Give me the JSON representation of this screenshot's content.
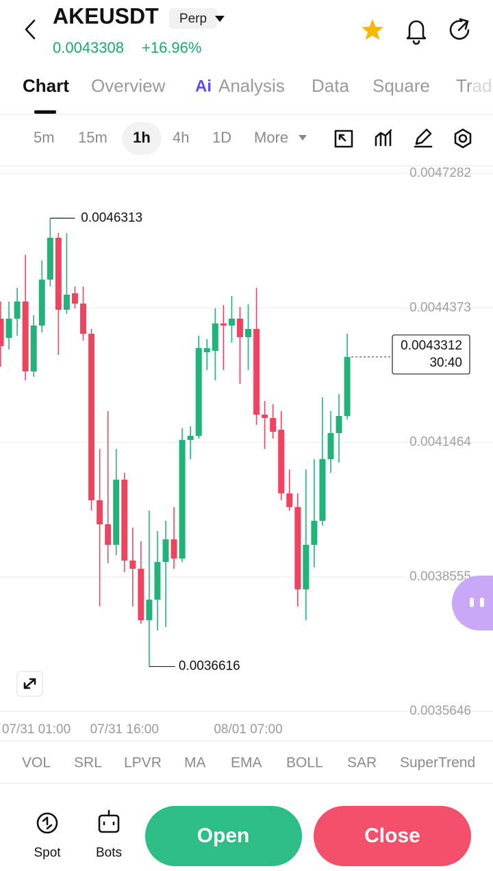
{
  "header": {
    "symbol": "AKEUSDT",
    "badge": "Perp",
    "price": "0.0043308",
    "change": "+16.96%"
  },
  "tabs": [
    "Chart",
    "Overview",
    "Analysis",
    "Data",
    "Square",
    "Trade"
  ],
  "ai_badge": "Ai",
  "intervals": [
    "5m",
    "15m",
    "1h",
    "4h",
    "1D",
    "More"
  ],
  "chart_data": {
    "type": "candlestick",
    "categories": [
      null,
      null,
      null,
      null,
      "07/31 01:00",
      null,
      null,
      null,
      null,
      null,
      null,
      null,
      null,
      null,
      null,
      "07/31 16:00",
      null,
      null,
      null,
      null,
      null,
      null,
      null,
      null,
      null,
      null,
      null,
      null,
      null,
      null,
      "08/01 07:00",
      null,
      null,
      null,
      null,
      null,
      null,
      null,
      null,
      null,
      null,
      null,
      null
    ],
    "open": [
      0.004414,
      0.0043724,
      0.004414,
      0.004451,
      0.0042998,
      0.0043991,
      0.0044984,
      0.0045889,
      0.0044332,
      0.0044688,
      0.0044466,
      0.0043813,
      0.0040211,
      0.0039693,
      0.0039248,
      0.0040656,
      0.0038907,
      0.0038729,
      0.0037617,
      0.0038062,
      0.0038877,
      0.0039367,
      0.0038951,
      0.0041516,
      0.0041605,
      0.0043413,
      0.0043443,
      0.0044036,
      0.0043991,
      0.004414,
      0.0043739,
      0.0043917,
      0.0042064,
      0.004199,
      0.0041738,
      0.004036,
      0.0040063,
      0.0038284,
      0.0039248,
      0.0039767,
      0.0041101,
      0.0041664,
      0.0042035
    ],
    "high": [
      0.004451,
      0.004451,
      0.0044807,
      0.0045518,
      0.0044214,
      0.0045399,
      0.0046313,
      0.0045992,
      0.0045992,
      0.0044836,
      0.0044836,
      0.0043917,
      0.0041323,
      0.0042138,
      0.0041323,
      0.0040804,
      0.0039618,
      0.0039322,
      0.0039989,
      0.0039544,
      0.0039767,
      0.0040063,
      0.0041768,
      0.0041812,
      0.0043769,
      0.0043695,
      0.0044362,
      0.0044436,
      0.0044629,
      0.0044392,
      0.0044451,
      0.0044807,
      0.0042361,
      0.0042287,
      0.0042138,
      0.0040879,
      0.004036,
      0.0040879,
      0.0041101,
      0.0042435,
      0.0042138,
      0.0042509,
      0.0043813
    ],
    "low": [
      0.0043102,
      0.0043472,
      0.0043769,
      0.0042806,
      0.004288,
      0.0043843,
      0.0044836,
      0.0043354,
      0.0044243,
      0.0044362,
      0.0043665,
      0.0039989,
      0.0037914,
      0.0038848,
      0.0039026,
      0.0038655,
      0.0037914,
      0.0037543,
      0.0036616,
      0.0037395,
      0.0037469,
      0.0038729,
      0.0038877,
      0.0041101,
      0.0041546,
      0.0043028,
      0.0042806,
      0.0043028,
      0.0043621,
      0.0042731,
      0.0043028,
      0.0041842,
      0.0041323,
      0.0041546,
      0.0040211,
      0.0039989,
      0.0037914,
      0.0037617,
      0.0038759,
      0.0039663,
      0.0040804,
      0.0041027,
      0.0041961
    ],
    "close": [
      0.0043547,
      0.004414,
      0.004451,
      0.0042998,
      0.0043991,
      0.0044984,
      0.0045889,
      0.0044332,
      0.0044658,
      0.0044466,
      0.0043813,
      0.0040211,
      0.0039693,
      0.0039248,
      0.0040656,
      0.0038907,
      0.0038729,
      0.0037617,
      0.0038062,
      0.0038877,
      0.0039367,
      0.0038951,
      0.0041516,
      0.0041605,
      0.0043502,
      0.0043502,
      0.0044036,
      0.0043991,
      0.004414,
      0.0043739,
      0.0043917,
      0.0042064,
      0.004199,
      0.0041694,
      0.004036,
      0.0040063,
      0.0038284,
      0.0039248,
      0.0039767,
      0.0041101,
      0.0041664,
      0.0042035,
      0.0043312
    ],
    "ylim": [
      0.0035646,
      0.0047282
    ],
    "yticks": [
      0.0047282,
      0.0044373,
      0.0041464,
      0.0038555,
      0.0035646
    ],
    "grid": true,
    "up_color": "#20b47a",
    "down_color": "#f1435f",
    "high_marker": 0.0046313,
    "low_marker": 0.0036616,
    "last_price": 0.0043312,
    "countdown": "30:40"
  },
  "indicators": [
    "VOL",
    "SRL",
    "LPVR",
    "MA",
    "EMA",
    "BOLL",
    "SAR",
    "SuperTrend"
  ],
  "bottom": {
    "spot": "Spot",
    "bots": "Bots",
    "open": "Open",
    "close": "Close"
  }
}
